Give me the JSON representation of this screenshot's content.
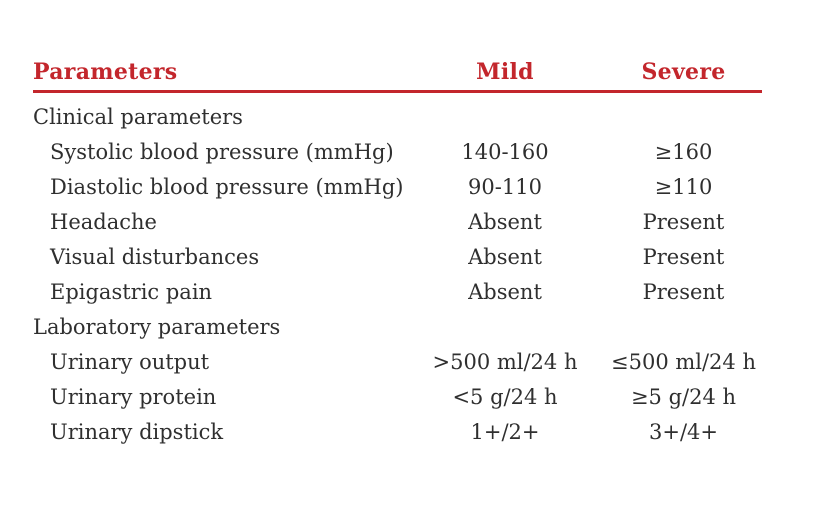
{
  "colors": {
    "accent": "#c3262c",
    "text": "#2f2f2f",
    "background": "#ffffff"
  },
  "table": {
    "columns": [
      {
        "label": "Parameters"
      },
      {
        "label": "Mild"
      },
      {
        "label": "Severe"
      }
    ],
    "rows": [
      {
        "type": "section",
        "label": "Clinical parameters",
        "mild": "",
        "severe": ""
      },
      {
        "type": "item",
        "label": "Systolic blood pressure (mmHg)",
        "mild": "140-160",
        "severe": "≥160"
      },
      {
        "type": "item",
        "label": "Diastolic blood pressure (mmHg)",
        "mild": "90-110",
        "severe": "≥110"
      },
      {
        "type": "item",
        "label": "Headache",
        "mild": "Absent",
        "severe": "Present"
      },
      {
        "type": "item",
        "label": "Visual disturbances",
        "mild": "Absent",
        "severe": "Present"
      },
      {
        "type": "item",
        "label": "Epigastric pain",
        "mild": "Absent",
        "severe": "Present"
      },
      {
        "type": "section",
        "label": "Laboratory parameters",
        "mild": "",
        "severe": ""
      },
      {
        "type": "item",
        "label": "Urinary output",
        "mild": ">500 ml/24 h",
        "severe": "≤500 ml/24 h"
      },
      {
        "type": "item",
        "label": "Urinary protein",
        "mild": "<5 g/24 h",
        "severe": "≥5 g/24 h"
      },
      {
        "type": "item",
        "label": "Urinary dipstick",
        "mild": "1+/2+",
        "severe": "3+/4+"
      }
    ]
  }
}
